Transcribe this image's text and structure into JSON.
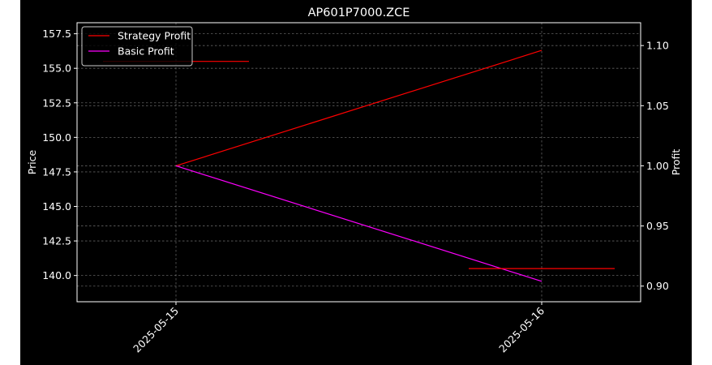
{
  "chart_data": {
    "type": "line",
    "title": "AP601P7000.ZCE",
    "x": [
      "2025-05-15",
      "2025-05-16"
    ],
    "xlabel": "",
    "y_left": {
      "label": "Price",
      "ticks": [
        "140.0",
        "142.5",
        "145.0",
        "147.5",
        "150.0",
        "152.5",
        "155.0",
        "157.5"
      ],
      "ylim": [
        138.1,
        158.3
      ]
    },
    "y_right": {
      "label": "Profit",
      "ticks": [
        "0.90",
        "0.95",
        "1.00",
        "1.05",
        "1.10"
      ],
      "ylim": [
        0.887,
        1.119
      ]
    },
    "series": [
      {
        "name": "Strategy Profit",
        "axis": "right",
        "color": "#ff0000",
        "values": [
          1.0,
          1.096
        ]
      },
      {
        "name": "Basic Profit",
        "axis": "right",
        "color": "#ff00ff",
        "values": [
          1.0,
          0.904
        ]
      },
      {
        "axis": "left",
        "color": "#ff0000",
        "segments": [
          {
            "x": "2025-05-15",
            "y": 155.5
          },
          {
            "x": "2025-05-16",
            "y": 140.5
          }
        ]
      }
    ],
    "grid": true,
    "legend_position": "top-left",
    "background": "#000000"
  }
}
